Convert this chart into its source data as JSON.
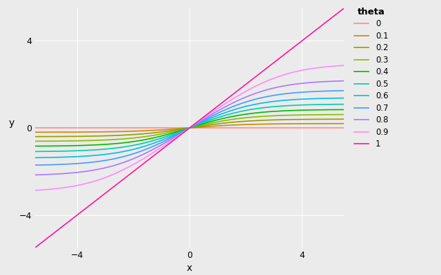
{
  "thetas": [
    0,
    0.1,
    0.2,
    0.3,
    0.4,
    0.5,
    0.6,
    0.7,
    0.8,
    0.9,
    1.0
  ],
  "theta_labels": [
    "0",
    "0.1",
    "0.2",
    "0.3",
    "0.4",
    "0.5",
    "0.6",
    "0.7",
    "0.8",
    "0.9",
    "1"
  ],
  "colors": [
    "#FF8888",
    "#CC8800",
    "#999900",
    "#88BB00",
    "#00BB00",
    "#00CCAA",
    "#00BBEE",
    "#4499FF",
    "#AA77FF",
    "#FF88FF",
    "#FF1493"
  ],
  "x_min": -6,
  "x_max": 6,
  "xlabel": "x",
  "ylabel": "y",
  "legend_title": "theta",
  "background_color": "#EBEBEB",
  "grid_color": "#FFFFFF",
  "xlim": [
    -5.5,
    5.5
  ],
  "ylim": [
    -5.5,
    5.5
  ],
  "xticks": [
    -4,
    0,
    4
  ],
  "yticks": [
    -4,
    0,
    4
  ],
  "n_points": 500
}
